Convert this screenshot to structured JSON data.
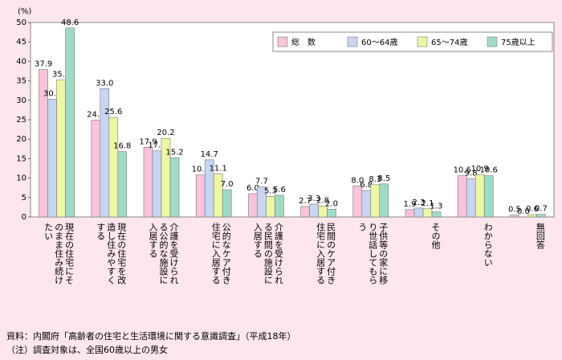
{
  "chart_data": {
    "type": "bar",
    "ylabel": "(%)",
    "categories": [
      "現在の住宅にそのまま住み続けたい",
      "現在の住宅を改造し住みやすくする",
      "介護を受けられる公的な施設に入居する",
      "公的なケア付き住宅に入居する",
      "介護を受けられる民間の施設に入居する",
      "民間のケア付き住宅に入居する",
      "子供等の家に移り世話してもらう",
      "その他",
      "わからない",
      "無回答"
    ],
    "series": [
      {
        "name": "総　数",
        "color": "#f9c3da",
        "values": [
          37.9,
          24.9,
          17.9,
          10.8,
          6.0,
          2.7,
          8.0,
          1.9,
          10.6,
          0.5
        ],
        "value_labels": [
          "37.9",
          "24.9",
          "17.9",
          "10.8",
          "6.0",
          "2.7",
          "8.0",
          "1.9",
          "10.6",
          "0.5"
        ]
      },
      {
        "name": "60〜64歳",
        "color": "#c6d6f2",
        "values": [
          30.3,
          33.0,
          17.0,
          14.7,
          7.7,
          3.3,
          6.8,
          2.3,
          9.8,
          0.0
        ],
        "value_labels": [
          "30.3",
          "33.0",
          "17.0",
          "14.7",
          "7.7",
          "3.3",
          "6.8",
          "2.3",
          "9.8",
          "0.0"
        ]
      },
      {
        "name": "65〜74歳",
        "color": "#eef7a2",
        "values": [
          35.2,
          25.6,
          20.2,
          11.1,
          5.3,
          2.8,
          8.3,
          2.1,
          10.9,
          0.6
        ],
        "value_labels": [
          "35.2",
          "25.6",
          "20.2",
          "11.1",
          "5.3",
          "2.8",
          "8.3",
          "2.1",
          "10.9",
          "0.6"
        ]
      },
      {
        "name": "75歳以上",
        "color": "#9fdcc6",
        "values": [
          48.6,
          16.8,
          15.2,
          7.0,
          5.6,
          2.0,
          8.5,
          1.3,
          10.6,
          0.7
        ],
        "value_labels": [
          "48.6",
          "16.8",
          "15.2",
          "7.0",
          "5.6",
          "2.0",
          "8.5",
          "1.3",
          "10.6",
          "0.7"
        ]
      }
    ],
    "ylim": [
      0,
      50
    ],
    "yticks": [
      0,
      5,
      10,
      15,
      20,
      25,
      30,
      35,
      40,
      45,
      50
    ],
    "grid": false,
    "legend": "top-right",
    "notes": [
      "資料：内閣府「高齢者の住宅と生活環境に関する意識調査」（平成18年）",
      "（注）調査対象は、全国60歳以上の男女"
    ]
  }
}
